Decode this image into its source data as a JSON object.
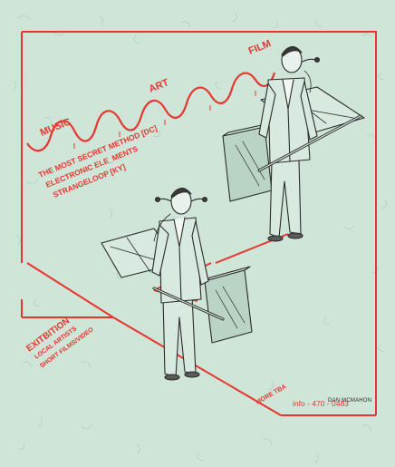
{
  "poster": {
    "accent_color": "#e6362f",
    "paper_color": "#cfe5d8",
    "ink_color": "#2b2b2b",
    "wave_labels": {
      "music": "MUSIC",
      "art": "ART",
      "film": "FILM"
    },
    "program": {
      "line1": "THE MOST SECRET METHOD [DC]",
      "line2": "ELECTRONIC ELE_MENTS",
      "line3": "STRANGELOOP [KY]"
    },
    "exhibition": {
      "title": "EXITBITION",
      "line1": "LOCAL ARTISTS",
      "line2": "SHORT FILMS/VIDEO"
    },
    "footer": {
      "more": "MORE TBA",
      "info": "info - 470 - 0483",
      "credit": "DAN MCMAHON"
    },
    "figures": [
      {
        "name": "upper-man",
        "icon": "man-holding-device-illustration"
      },
      {
        "name": "lower-man",
        "icon": "man-holding-device-illustration"
      }
    ]
  }
}
